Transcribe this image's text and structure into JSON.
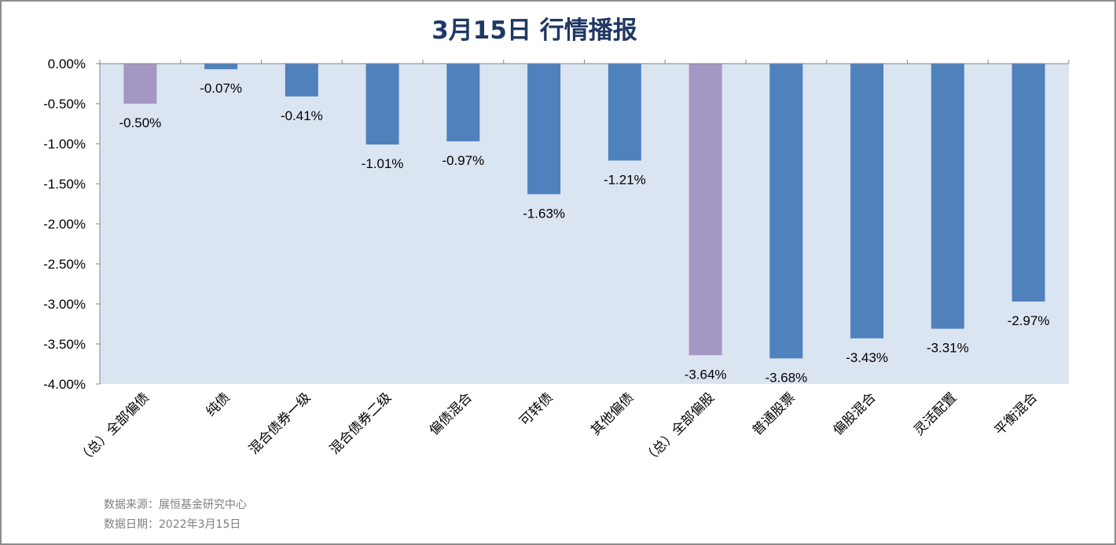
{
  "chart_data": {
    "type": "bar",
    "title": "3月15日  行情播报",
    "categories": [
      "（总）全部偏债",
      "纯债",
      "混合债券一级",
      "混合债券二级",
      "偏债混合",
      "可转债",
      "其他偏债",
      "（总）全部偏股",
      "普通股票",
      "偏股混合",
      "灵活配置",
      "平衡混合"
    ],
    "values": [
      -0.5,
      -0.07,
      -0.41,
      -1.01,
      -0.97,
      -1.63,
      -1.21,
      -3.64,
      -3.68,
      -3.43,
      -3.31,
      -2.97
    ],
    "value_labels": [
      "-0.50%",
      "-0.07%",
      "-0.41%",
      "-1.01%",
      "-0.97%",
      "-1.63%",
      "-1.21%",
      "-3.64%",
      "-3.68%",
      "-3.43%",
      "-3.31%",
      "-2.97%"
    ],
    "highlight_indices": [
      0,
      7
    ],
    "yticks": [
      0,
      -0.5,
      -1,
      -1.5,
      -2,
      -2.5,
      -3,
      -3.5,
      -4
    ],
    "ytick_labels": [
      "0.00%",
      "-0.50%",
      "-1.00%",
      "-1.50%",
      "-2.00%",
      "-2.50%",
      "-3.00%",
      "-3.50%",
      "-4.00%"
    ],
    "ylim": [
      -4,
      0
    ],
    "unit": "%",
    "grid": false,
    "legend": "none"
  },
  "footer": {
    "source": "数据来源：展恒基金研究中心",
    "date": "数据日期：2022年3月15日"
  },
  "colors": {
    "title": "#1f3864",
    "plot_bg": "#dbe4f1",
    "bar": "#4f81bd",
    "bar_highlight": "#a597c4",
    "axis": "#868686",
    "source_text": "#7f7f7f"
  }
}
